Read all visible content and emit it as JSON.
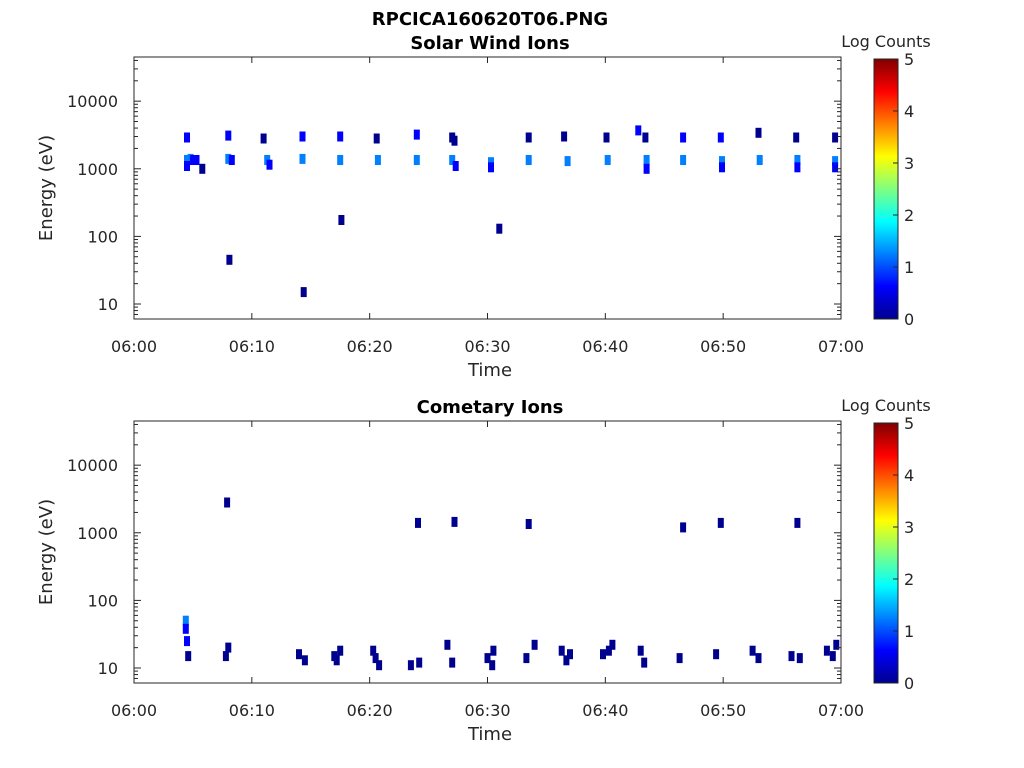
{
  "figure": {
    "title": "RPCICA160620T06.PNG"
  },
  "colormap": [
    "#00008f",
    "#0000ff",
    "#0080ff",
    "#00ffff",
    "#80ff80",
    "#ffff00",
    "#ff8000",
    "#ff0000",
    "#800000"
  ],
  "chart_data": [
    {
      "type": "heatmap",
      "title": "Solar Wind Ions",
      "xlabel": "Time",
      "ylabel": "Energy (eV)",
      "x_range": [
        "06:00",
        "07:00"
      ],
      "x_ticks": [
        "06:00",
        "06:10",
        "06:20",
        "06:30",
        "06:40",
        "06:50",
        "07:00"
      ],
      "y_scale": "log",
      "y_range": [
        6,
        45000
      ],
      "y_ticks": [
        10,
        100,
        1000,
        10000
      ],
      "y_tick_labels": [
        "10",
        "100",
        "1000",
        "10000"
      ],
      "colorbar": {
        "label": "Log Counts",
        "range": [
          0,
          5
        ],
        "ticks": [
          "0",
          "1",
          "2",
          "3",
          "4",
          "5"
        ]
      },
      "cells": [
        {
          "t": 4.5,
          "e": 1350,
          "v": 1.0
        },
        {
          "t": 4.6,
          "e": 1350,
          "v": 1.2
        },
        {
          "t": 4.8,
          "e": 1400,
          "v": 1.0
        },
        {
          "t": 5.0,
          "e": 1350,
          "v": 0.9
        },
        {
          "t": 5.3,
          "e": 1350,
          "v": 0.8
        },
        {
          "t": 4.5,
          "e": 1100,
          "v": 0.5
        },
        {
          "t": 5.8,
          "e": 1000,
          "v": 0.3
        },
        {
          "t": 4.5,
          "e": 2900,
          "v": 0.4
        },
        {
          "t": 8.0,
          "e": 1400,
          "v": 1.1
        },
        {
          "t": 8.3,
          "e": 1350,
          "v": 0.9
        },
        {
          "t": 8.0,
          "e": 3100,
          "v": 0.4
        },
        {
          "t": 8.1,
          "e": 45,
          "v": 0.3
        },
        {
          "t": 11.3,
          "e": 1350,
          "v": 1.1
        },
        {
          "t": 11.5,
          "e": 1150,
          "v": 0.8
        },
        {
          "t": 11.0,
          "e": 2800,
          "v": 0.3
        },
        {
          "t": 14.3,
          "e": 1400,
          "v": 1.0
        },
        {
          "t": 14.3,
          "e": 3000,
          "v": 0.4
        },
        {
          "t": 14.4,
          "e": 15,
          "v": 0.3
        },
        {
          "t": 17.5,
          "e": 1350,
          "v": 1.2
        },
        {
          "t": 17.5,
          "e": 3000,
          "v": 0.4
        },
        {
          "t": 17.6,
          "e": 175,
          "v": 0.3
        },
        {
          "t": 20.7,
          "e": 1350,
          "v": 1.1
        },
        {
          "t": 20.6,
          "e": 2800,
          "v": 0.3
        },
        {
          "t": 24.0,
          "e": 1350,
          "v": 1.3
        },
        {
          "t": 24.0,
          "e": 3200,
          "v": 0.4
        },
        {
          "t": 27.0,
          "e": 1350,
          "v": 1.1
        },
        {
          "t": 27.3,
          "e": 1100,
          "v": 0.6
        },
        {
          "t": 27.0,
          "e": 2900,
          "v": 0.3
        },
        {
          "t": 27.2,
          "e": 2600,
          "v": 0.3
        },
        {
          "t": 30.3,
          "e": 1250,
          "v": 1.2
        },
        {
          "t": 30.3,
          "e": 1050,
          "v": 0.7
        },
        {
          "t": 31.0,
          "e": 130,
          "v": 0.3
        },
        {
          "t": 33.5,
          "e": 1350,
          "v": 1.2
        },
        {
          "t": 33.5,
          "e": 2900,
          "v": 0.3
        },
        {
          "t": 36.8,
          "e": 1300,
          "v": 1.1
        },
        {
          "t": 36.5,
          "e": 3000,
          "v": 0.3
        },
        {
          "t": 40.2,
          "e": 1350,
          "v": 1.2
        },
        {
          "t": 40.1,
          "e": 2900,
          "v": 0.3
        },
        {
          "t": 43.5,
          "e": 1350,
          "v": 1.2
        },
        {
          "t": 43.5,
          "e": 1000,
          "v": 0.6
        },
        {
          "t": 42.8,
          "e": 3700,
          "v": 0.4
        },
        {
          "t": 43.4,
          "e": 2900,
          "v": 0.3
        },
        {
          "t": 46.6,
          "e": 1350,
          "v": 1.1
        },
        {
          "t": 46.6,
          "e": 2900,
          "v": 0.4
        },
        {
          "t": 49.9,
          "e": 1300,
          "v": 1.2
        },
        {
          "t": 49.9,
          "e": 1050,
          "v": 0.6
        },
        {
          "t": 49.8,
          "e": 2900,
          "v": 0.4
        },
        {
          "t": 53.1,
          "e": 1350,
          "v": 1.1
        },
        {
          "t": 53.0,
          "e": 3400,
          "v": 0.3
        },
        {
          "t": 56.3,
          "e": 1350,
          "v": 1.2
        },
        {
          "t": 56.3,
          "e": 1050,
          "v": 0.6
        },
        {
          "t": 56.2,
          "e": 2900,
          "v": 0.3
        },
        {
          "t": 59.5,
          "e": 1300,
          "v": 1.1
        },
        {
          "t": 59.5,
          "e": 1050,
          "v": 0.6
        },
        {
          "t": 59.5,
          "e": 2900,
          "v": 0.3
        }
      ]
    },
    {
      "type": "heatmap",
      "title": "Cometary Ions",
      "xlabel": "Time",
      "ylabel": "Energy (eV)",
      "x_range": [
        "06:00",
        "07:00"
      ],
      "x_ticks": [
        "06:00",
        "06:10",
        "06:20",
        "06:30",
        "06:40",
        "06:50",
        "07:00"
      ],
      "y_scale": "log",
      "y_range": [
        6,
        45000
      ],
      "y_ticks": [
        10,
        100,
        1000,
        10000
      ],
      "y_tick_labels": [
        "10",
        "100",
        "1000",
        "10000"
      ],
      "colorbar": {
        "label": "Log Counts",
        "range": [
          0,
          5
        ],
        "ticks": [
          "0",
          "1",
          "2",
          "3",
          "4",
          "5"
        ]
      },
      "cells": [
        {
          "t": 4.4,
          "e": 50,
          "v": 1.0
        },
        {
          "t": 4.4,
          "e": 38,
          "v": 0.6
        },
        {
          "t": 4.5,
          "e": 25,
          "v": 0.4
        },
        {
          "t": 4.6,
          "e": 15,
          "v": 0.3
        },
        {
          "t": 7.9,
          "e": 2800,
          "v": 0.3
        },
        {
          "t": 8.0,
          "e": 20,
          "v": 0.2
        },
        {
          "t": 7.8,
          "e": 15,
          "v": 0.2
        },
        {
          "t": 14.0,
          "e": 16,
          "v": 0.2
        },
        {
          "t": 14.5,
          "e": 13,
          "v": 0.2
        },
        {
          "t": 17.0,
          "e": 15,
          "v": 0.3
        },
        {
          "t": 17.2,
          "e": 13,
          "v": 0.3
        },
        {
          "t": 17.5,
          "e": 18,
          "v": 0.3
        },
        {
          "t": 20.3,
          "e": 18,
          "v": 0.3
        },
        {
          "t": 20.5,
          "e": 14,
          "v": 0.3
        },
        {
          "t": 20.8,
          "e": 11,
          "v": 0.2
        },
        {
          "t": 23.5,
          "e": 11,
          "v": 0.2
        },
        {
          "t": 24.1,
          "e": 1400,
          "v": 0.3
        },
        {
          "t": 24.2,
          "e": 12,
          "v": 0.2
        },
        {
          "t": 26.6,
          "e": 22,
          "v": 0.2
        },
        {
          "t": 27.0,
          "e": 12,
          "v": 0.2
        },
        {
          "t": 27.2,
          "e": 1450,
          "v": 0.3
        },
        {
          "t": 30.0,
          "e": 14,
          "v": 0.3
        },
        {
          "t": 30.4,
          "e": 11,
          "v": 0.3
        },
        {
          "t": 30.5,
          "e": 18,
          "v": 0.2
        },
        {
          "t": 33.3,
          "e": 14,
          "v": 0.3
        },
        {
          "t": 33.5,
          "e": 1350,
          "v": 0.3
        },
        {
          "t": 34.0,
          "e": 22,
          "v": 0.2
        },
        {
          "t": 36.3,
          "e": 18,
          "v": 0.3
        },
        {
          "t": 36.7,
          "e": 13,
          "v": 0.3
        },
        {
          "t": 37.0,
          "e": 16,
          "v": 0.2
        },
        {
          "t": 39.8,
          "e": 16,
          "v": 0.2
        },
        {
          "t": 40.3,
          "e": 18,
          "v": 0.2
        },
        {
          "t": 40.6,
          "e": 22,
          "v": 0.2
        },
        {
          "t": 43.0,
          "e": 18,
          "v": 0.3
        },
        {
          "t": 43.3,
          "e": 12,
          "v": 0.2
        },
        {
          "t": 46.3,
          "e": 14,
          "v": 0.3
        },
        {
          "t": 46.6,
          "e": 1200,
          "v": 0.3
        },
        {
          "t": 49.4,
          "e": 16,
          "v": 0.2
        },
        {
          "t": 49.8,
          "e": 1400,
          "v": 0.3
        },
        {
          "t": 52.5,
          "e": 18,
          "v": 0.3
        },
        {
          "t": 53.0,
          "e": 14,
          "v": 0.3
        },
        {
          "t": 55.8,
          "e": 15,
          "v": 0.2
        },
        {
          "t": 56.3,
          "e": 1400,
          "v": 0.3
        },
        {
          "t": 56.5,
          "e": 14,
          "v": 0.2
        },
        {
          "t": 58.8,
          "e": 18,
          "v": 0.3
        },
        {
          "t": 59.3,
          "e": 15,
          "v": 0.3
        },
        {
          "t": 59.6,
          "e": 22,
          "v": 0.2
        }
      ]
    }
  ]
}
